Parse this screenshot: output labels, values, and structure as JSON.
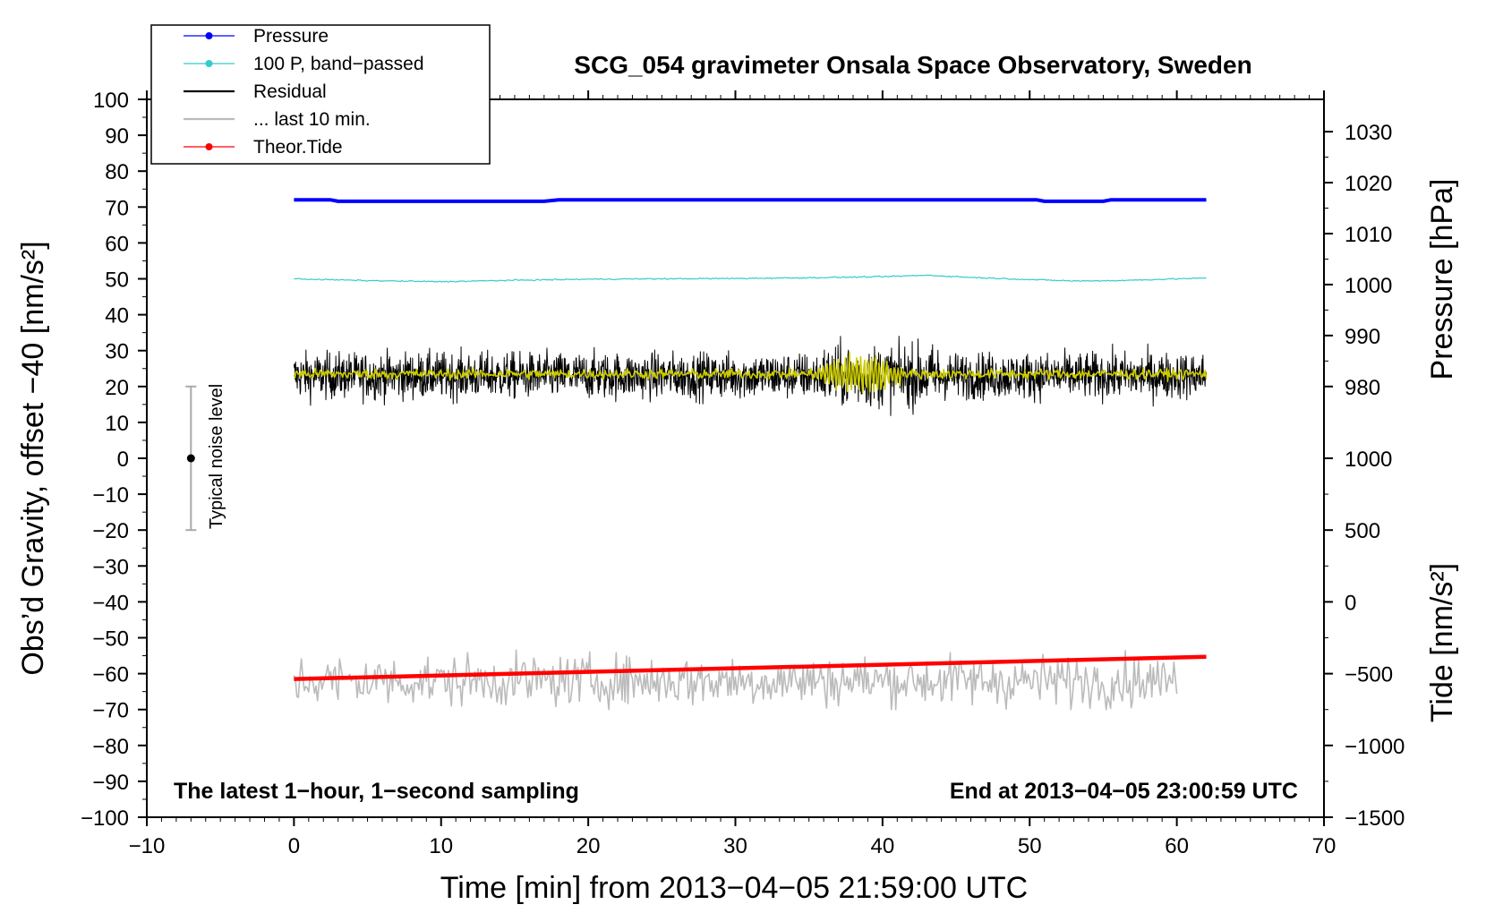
{
  "chart_data": {
    "type": "line",
    "title": "SCG_054 gravimeter Onsala Space Observatory, Sweden",
    "xlabel": "Time [min] from 2013−04−05 21:59:00 UTC",
    "ylabel_left": "Obs’d Gravity, offset −40 [nm/s²]",
    "ylabel_right_top": "Pressure [hPa]",
    "ylabel_right_bottom": "Tide [nm/s²]",
    "xlim": [
      -10,
      70
    ],
    "ylim": [
      -100,
      100
    ],
    "xticks": [
      -10,
      0,
      10,
      20,
      30,
      40,
      50,
      60,
      70
    ],
    "xtick_labels": [
      "−10",
      "0",
      "10",
      "20",
      "30",
      "40",
      "50",
      "60",
      "70"
    ],
    "yticks": [
      100,
      90,
      80,
      70,
      60,
      50,
      40,
      30,
      20,
      10,
      0,
      -10,
      -20,
      -30,
      -40,
      -50,
      -60,
      -70,
      -80,
      -90,
      -100
    ],
    "ytick_labels": [
      "100",
      "90",
      "80",
      "70",
      "60",
      "50",
      "40",
      "30",
      "20",
      "10",
      "0",
      "−10",
      "−20",
      "−30",
      "−40",
      "−50",
      "−60",
      "−70",
      "−80",
      "−90",
      "−100"
    ],
    "pressure_axis": {
      "ticks": [
        1030,
        1020,
        1010,
        1000,
        990,
        980
      ],
      "tick_labels": [
        "1030",
        "1020",
        "1010",
        "1000",
        "990",
        "980"
      ],
      "map_hpa": [
        980,
        1030
      ],
      "map_gravity": [
        20,
        91
      ]
    },
    "tide_axis": {
      "ticks": [
        1000,
        500,
        0,
        -500,
        -1000,
        -1500
      ],
      "tick_labels": [
        "1000",
        "500",
        "0",
        "−500",
        "−1000",
        "−1500"
      ],
      "map_tide": [
        -1500,
        1000
      ],
      "map_gravity": [
        -100,
        0
      ]
    },
    "annotations": {
      "bottom_left": "The latest 1−hour, 1−second sampling",
      "bottom_right": "End at 2013−04−05 23:00:59 UTC",
      "noise_label": "Typical noise level",
      "noise_bar": {
        "x": -7,
        "center": 0,
        "low": -20,
        "high": 20
      }
    },
    "legend": [
      {
        "label": "Pressure",
        "color": "#0000ff",
        "marker": true
      },
      {
        "label": "100 P, band−passed",
        "color": "#33cccc",
        "marker": true
      },
      {
        "label": "Residual",
        "color": "#000000",
        "marker": false
      },
      {
        "label": "... last 10 min.",
        "color": "#bbbbbb",
        "marker": false
      },
      {
        "label": "Theor.Tide",
        "color": "#ff0000",
        "marker": true
      }
    ],
    "series": [
      {
        "name": "Pressure",
        "color": "#0000ff",
        "x": [
          0,
          2.5,
          3,
          17,
          18,
          50.5,
          51,
          55,
          55.5,
          62
        ],
        "y": [
          72,
          72,
          71.6,
          71.6,
          72,
          72,
          71.6,
          71.6,
          72,
          72
        ]
      },
      {
        "name": "100 P, band−passed",
        "color": "#33cccc",
        "x": [
          0,
          5,
          10,
          15,
          20,
          25,
          30,
          35,
          40,
          43,
          46,
          50,
          53,
          56,
          60,
          62
        ],
        "y": [
          50,
          49.5,
          49.2,
          49.6,
          49.9,
          50,
          50.1,
          50.3,
          50.6,
          51,
          50.4,
          49.8,
          49.4,
          49.5,
          50,
          50.2
        ]
      },
      {
        "name": "Residual",
        "color": "#000000",
        "x_range": [
          0,
          62
        ],
        "mean": 23,
        "noise_amplitude": 4.5,
        "y_max": 34,
        "y_min": 11
      },
      {
        "name": "Residual smoothed",
        "color": "#cccc00",
        "x_range": [
          0,
          62
        ],
        "mean": 23.5,
        "noise_amplitude": 1,
        "burst_x": [
          35,
          42
        ],
        "burst_amplitude": 5
      },
      {
        "name": "... last 10 min.",
        "color": "#bbbbbb",
        "x_range": [
          0,
          60
        ],
        "mean": -62,
        "noise_amplitude": 5,
        "y_max": -51,
        "y_min": -70
      },
      {
        "name": "Theor.Tide",
        "color": "#ff0000",
        "x": [
          0,
          62
        ],
        "y": [
          -61.5,
          -55.3
        ]
      }
    ],
    "grid": false
  }
}
